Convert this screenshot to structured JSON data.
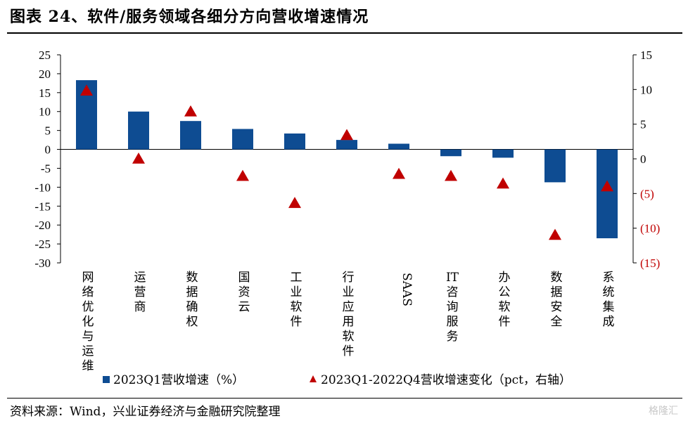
{
  "header": {
    "title": "图表 24、软件/服务领域各细分方向营收增速情况"
  },
  "footer": {
    "source": "资料来源：Wind，兴业证券经济与金融研究院整理",
    "watermark": "格隆汇"
  },
  "colors": {
    "bar": "#0E4C92",
    "marker": "#C00000",
    "neg_tick": "#C00000"
  },
  "chart_data": {
    "type": "bar",
    "title": "",
    "categories": [
      "网络优化与运维",
      "运营商",
      "数据确权",
      "国资云",
      "工业软件",
      "行业应用软件",
      "SAAS",
      "IT咨询服务",
      "办公软件",
      "数据安全",
      "系统集成"
    ],
    "category_orientation": [
      "vertical",
      "vertical",
      "vertical",
      "vertical",
      "vertical",
      "vertical",
      "rotated",
      "mixed",
      "vertical",
      "vertical",
      "vertical"
    ],
    "series": [
      {
        "name": "2023Q1营收增速（%）",
        "type": "bar",
        "axis": "left",
        "values": [
          18.3,
          10.0,
          7.5,
          5.4,
          4.2,
          2.5,
          1.5,
          -1.8,
          -2.2,
          -8.7,
          -23.5
        ]
      },
      {
        "name": "2023Q1-2022Q4营收增速变化（pct，右轴）",
        "type": "scatter",
        "marker": "triangle",
        "axis": "right",
        "values": [
          9.8,
          0.0,
          6.8,
          -2.5,
          -6.4,
          3.4,
          -2.2,
          -2.5,
          -3.6,
          -11.0,
          -4.0
        ]
      }
    ],
    "left_axis": {
      "ylim": [
        -30,
        25
      ],
      "ticks": [
        25,
        20,
        15,
        10,
        5,
        0,
        -5,
        -10,
        -15,
        -20,
        -25,
        -30
      ],
      "tick_labels": [
        "25",
        "20",
        "15",
        "10",
        "5",
        "0",
        "-5",
        "-10",
        "-15",
        "-20",
        "-25",
        "-30"
      ]
    },
    "right_axis": {
      "ylim": [
        -15,
        15
      ],
      "ticks": [
        15,
        10,
        5,
        0,
        -5,
        -10,
        -15
      ],
      "tick_labels": [
        "15",
        "10",
        "5",
        "0",
        "(5)",
        "(10)",
        "(15)"
      ]
    },
    "grid": false,
    "legend": "bottom"
  }
}
